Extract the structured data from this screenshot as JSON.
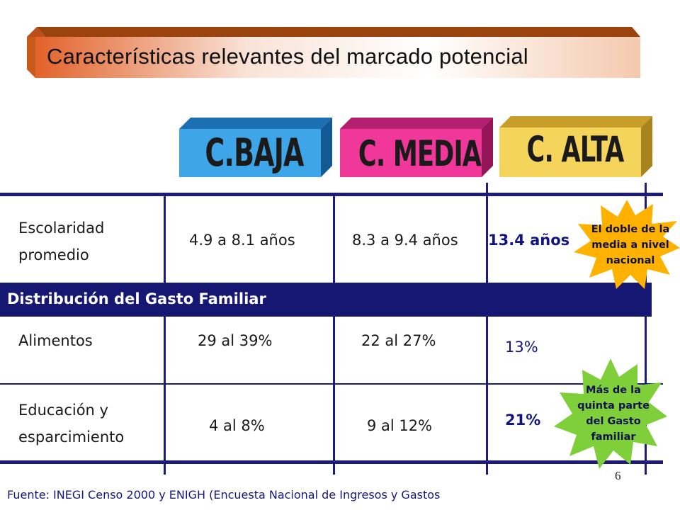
{
  "slide": {
    "title": "Características relevantes del marcado potencial",
    "page_number": "6",
    "footer": "Fuente: INEGI Censo 2000 y ENIGH (Encuesta Nacional de Ingresos y Gastos"
  },
  "colors": {
    "banner_front": "#e2622a",
    "banner_top": "#a04510",
    "banner_side": "#c05015",
    "cat_baja": "#3da5e8",
    "cat_media": "#f0389a",
    "cat_alta": "#f4d45a",
    "table_lines": "#1b1b7a",
    "section_band": "#161673",
    "burst_yellow": "#ffb100",
    "burst_green": "#7fcf3a"
  },
  "categories": [
    {
      "label": "C.BAJA"
    },
    {
      "label": "C. MEDIA"
    },
    {
      "label": "C. ALTA"
    }
  ],
  "rows": {
    "escolaridad": {
      "label_line1": "Escolaridad",
      "label_line2": "promedio",
      "baja": "4.9 a 8.1 años",
      "media": "8.3 a 9.4 años",
      "alta": "13.4 años"
    },
    "section": "Distribución del Gasto Familiar",
    "alimentos": {
      "label": "Alimentos",
      "baja": "29 al 39%",
      "media": "22 al 27%",
      "alta": "13%"
    },
    "educacion": {
      "label_line1": "Educación y",
      "label_line2": "esparcimiento",
      "baja": "4 al 8%",
      "media": "9 al 12%",
      "alta": "21%"
    }
  },
  "callouts": {
    "yellow": [
      "El doble de la",
      "media a nivel",
      "nacional"
    ],
    "green": [
      "Más de la",
      "quinta parte",
      "del Gasto",
      "familiar"
    ]
  }
}
